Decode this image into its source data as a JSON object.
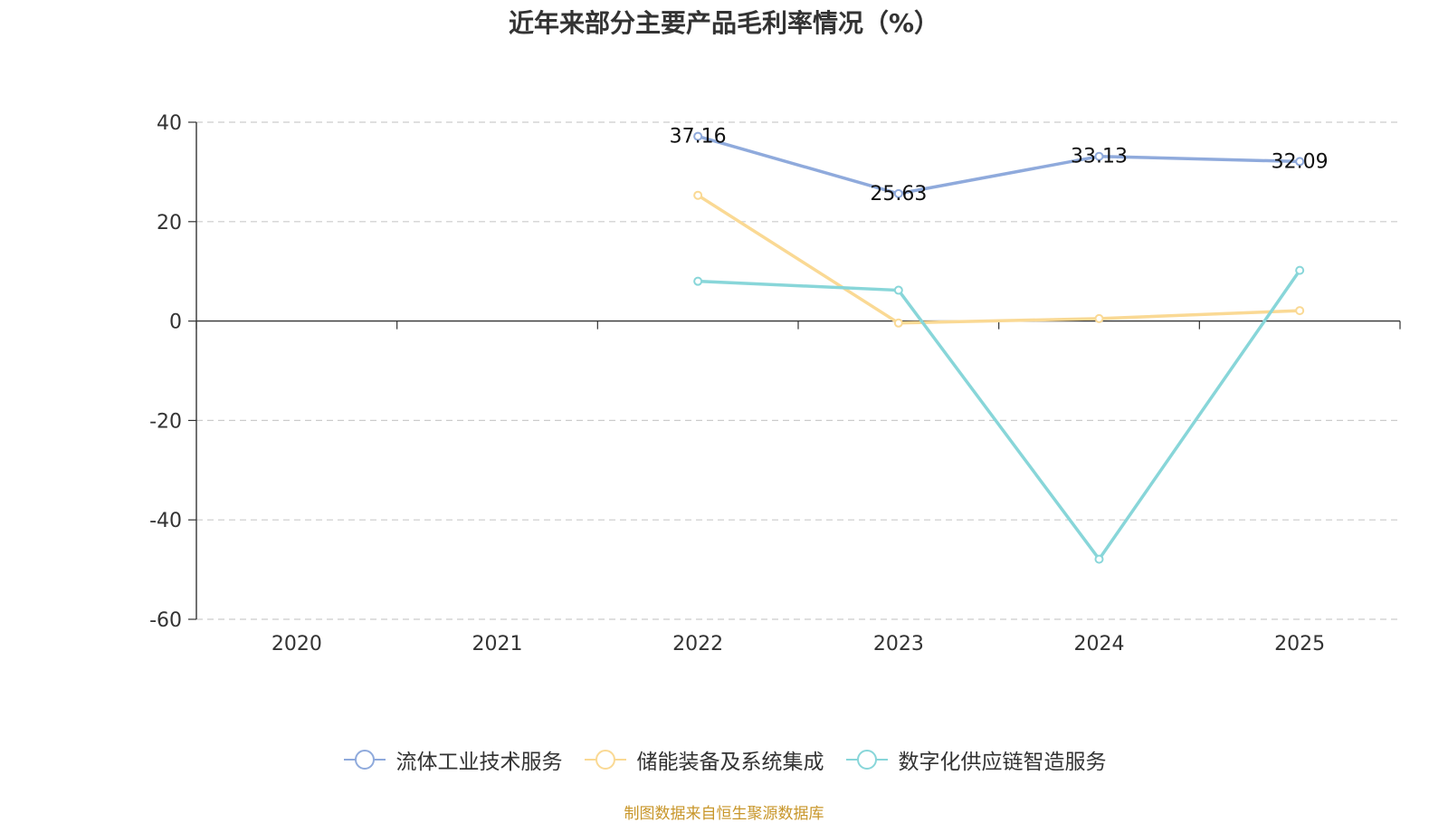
{
  "chart_data": {
    "type": "line",
    "title": "近年来部分主要产品毛利率情况（%）",
    "categories": [
      "2020",
      "2021",
      "2022",
      "2023",
      "2024",
      "2025"
    ],
    "ylim": [
      -60,
      40
    ],
    "yticks": [
      40,
      20,
      0,
      -20,
      -40,
      -60
    ],
    "grid": true,
    "legend_position": "bottom",
    "series": [
      {
        "name": "流体工业技术服务",
        "color": "#8faadc",
        "values": [
          null,
          null,
          37.16,
          25.63,
          33.13,
          32.09
        ],
        "labels": [
          null,
          null,
          "37.16",
          "25.63",
          "33.13",
          "32.09"
        ]
      },
      {
        "name": "储能装备及系统集成",
        "color": "#fad994",
        "values": [
          null,
          null,
          25.3,
          -0.4,
          0.5,
          2.1
        ],
        "labels": [
          null,
          null,
          null,
          null,
          null,
          null
        ]
      },
      {
        "name": "数字化供应链智造服务",
        "color": "#88d6d9",
        "values": [
          null,
          null,
          8.0,
          6.2,
          -47.9,
          10.2
        ],
        "labels": [
          null,
          null,
          null,
          null,
          null,
          null
        ]
      }
    ]
  },
  "source": "制图数据来自恒生聚源数据库"
}
